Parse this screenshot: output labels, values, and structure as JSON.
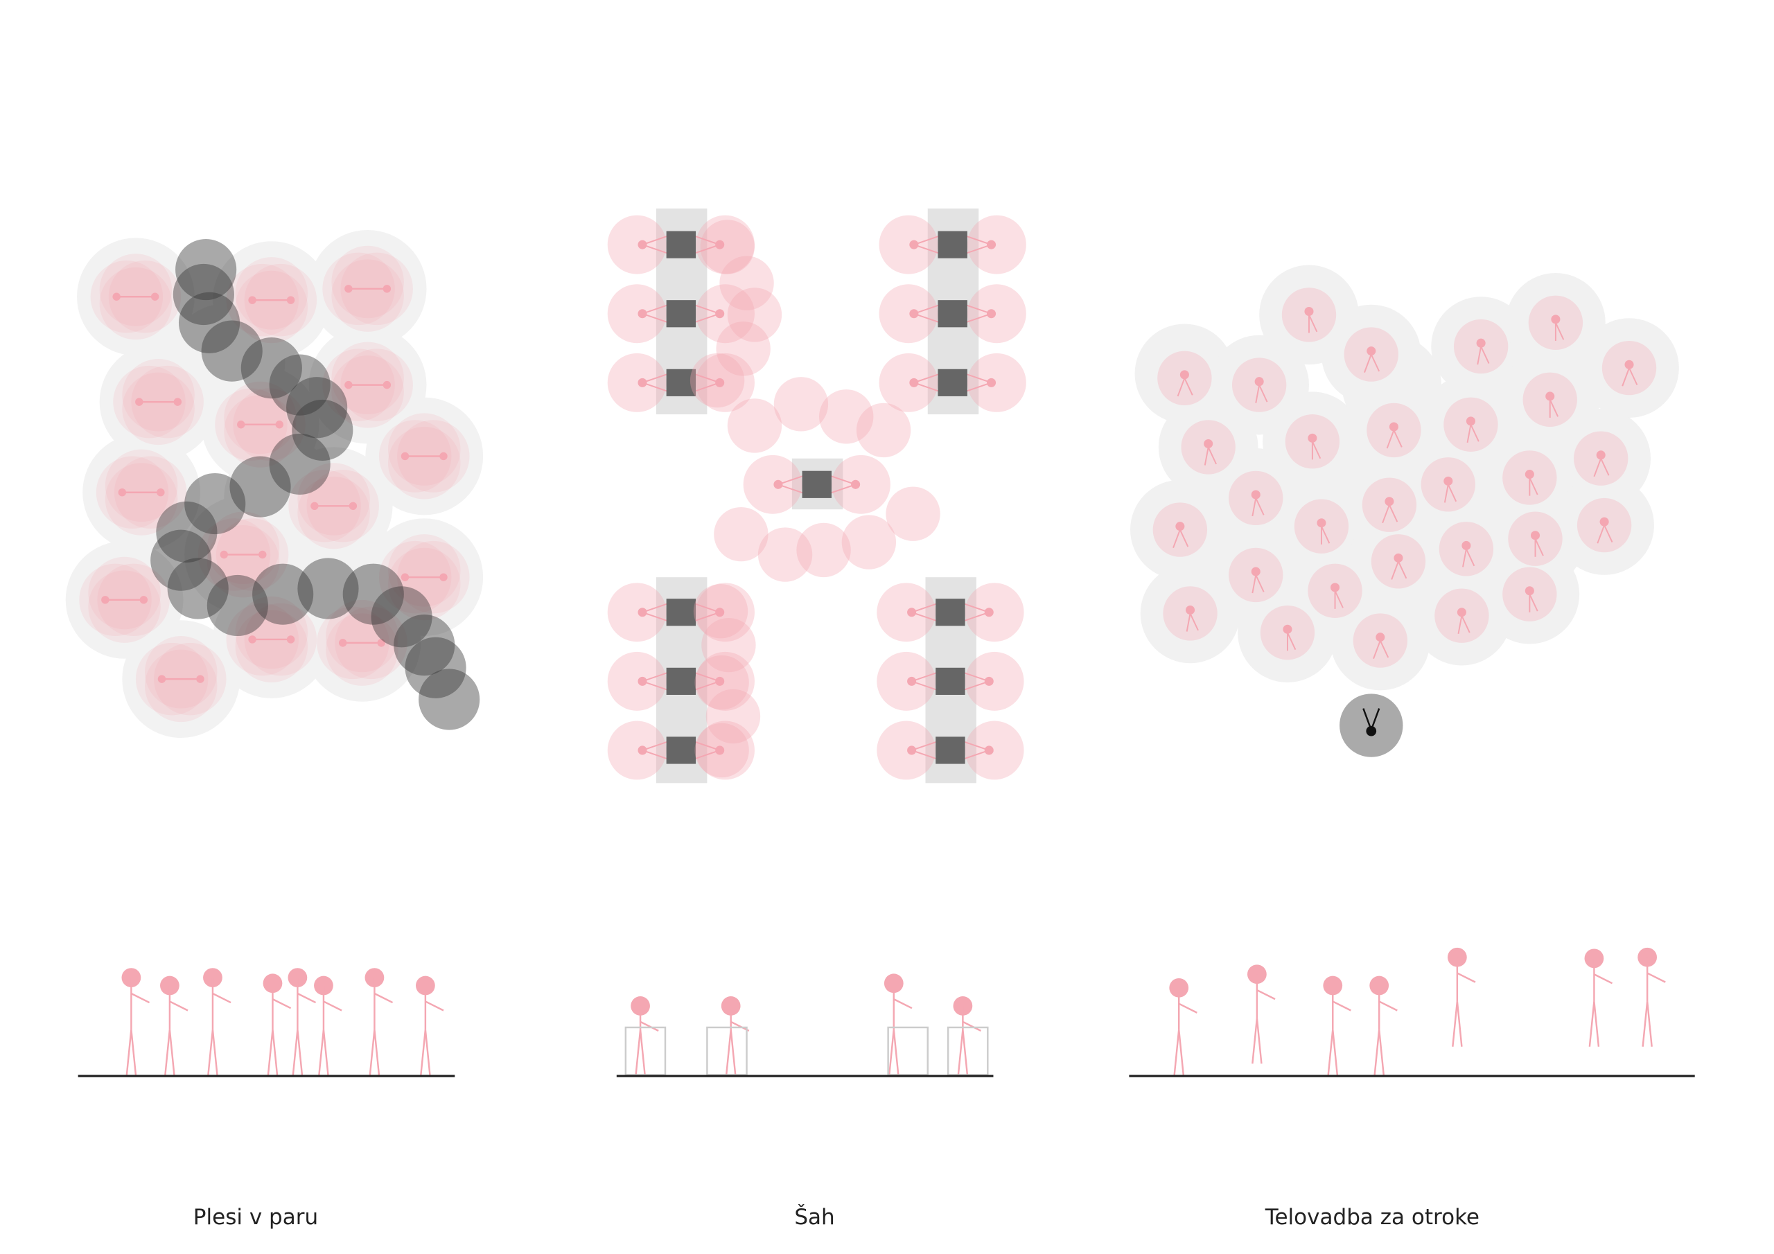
{
  "panels": [
    {
      "label": "Plesi v paru"
    },
    {
      "label": "Šah"
    },
    {
      "label": "Telovadba za otroke"
    }
  ]
}
